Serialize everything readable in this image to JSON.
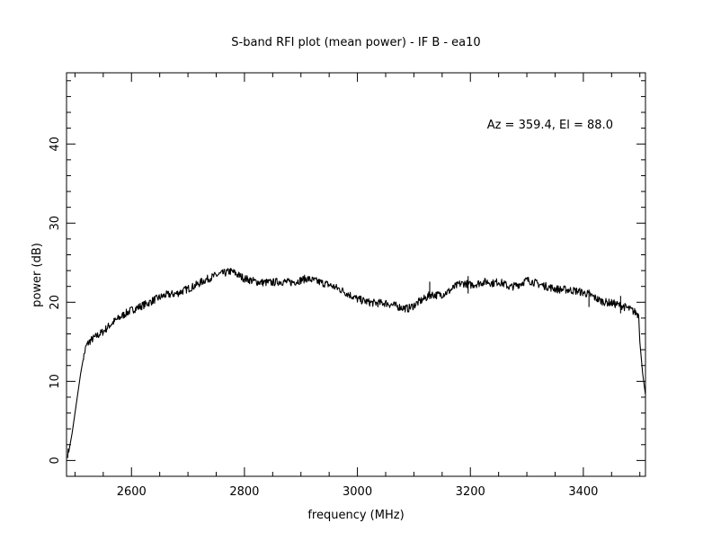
{
  "chart_data": {
    "type": "line",
    "title": "S-band RFI plot (mean power) - IF B - ea10",
    "xlabel": "frequency (MHz)",
    "ylabel": "power (dB)",
    "annotation": "Az = 359.4, El = 88.0",
    "xlim": [
      2485,
      3510
    ],
    "ylim": [
      -2,
      49
    ],
    "xticks": [
      2600,
      2800,
      3000,
      3200,
      3400
    ],
    "yticks": [
      0,
      10,
      20,
      30,
      40
    ],
    "xtick_labels": [
      "2600",
      "2800",
      "3000",
      "3200",
      "3400"
    ],
    "ytick_labels": [
      "0",
      "10",
      "20",
      "30",
      "40"
    ],
    "x_minor_step": 50,
    "y_minor_step": 2,
    "grid": false,
    "line_color": "#000000",
    "series": [
      {
        "x": [
          2487,
          2490,
          2495,
          2500,
          2505,
          2510,
          2515,
          2520,
          2525,
          2530,
          2540,
          2550,
          2560,
          2570,
          2580,
          2590,
          2600,
          2610,
          2620,
          2630,
          2640,
          2650,
          2660,
          2670,
          2680,
          2690,
          2700,
          2710,
          2720,
          2730,
          2740,
          2750,
          2760,
          2770,
          2775,
          2780,
          2790,
          2800,
          2810,
          2820,
          2830,
          2840,
          2850,
          2860,
          2870,
          2880,
          2890,
          2900,
          2910,
          2920,
          2930,
          2940,
          2950,
          2960,
          2970,
          2980,
          2990,
          3000,
          3010,
          3020,
          3030,
          3040,
          3050,
          3060,
          3070,
          3080,
          3090,
          3100,
          3110,
          3120,
          3130,
          3140,
          3150,
          3160,
          3170,
          3180,
          3190,
          3200,
          3210,
          3220,
          3230,
          3240,
          3250,
          3260,
          3270,
          3280,
          3290,
          3300,
          3310,
          3320,
          3330,
          3340,
          3350,
          3360,
          3370,
          3380,
          3390,
          3400,
          3410,
          3420,
          3430,
          3440,
          3450,
          3460,
          3470,
          3480,
          3490,
          3495,
          3498,
          3500,
          3505,
          3510
        ],
        "y": [
          0.8,
          1.5,
          3.5,
          6.0,
          8.5,
          11.0,
          13.0,
          14.5,
          15.0,
          15.3,
          15.8,
          16.3,
          17.0,
          17.6,
          18.1,
          18.6,
          19.0,
          19.3,
          19.6,
          19.9,
          20.3,
          20.6,
          20.9,
          21.0,
          21.1,
          21.4,
          21.7,
          22.0,
          22.4,
          22.8,
          23.1,
          23.4,
          23.6,
          23.8,
          23.9,
          23.8,
          23.4,
          23.0,
          22.8,
          22.6,
          22.5,
          22.5,
          22.5,
          22.6,
          22.6,
          22.5,
          22.6,
          22.8,
          23.0,
          22.8,
          22.6,
          22.4,
          22.2,
          21.9,
          21.6,
          21.2,
          20.8,
          20.4,
          20.2,
          20.0,
          19.9,
          19.9,
          19.9,
          19.7,
          19.5,
          19.3,
          19.2,
          19.6,
          20.1,
          20.5,
          21.0,
          20.9,
          21.0,
          21.3,
          21.8,
          22.3,
          22.4,
          22.2,
          22.3,
          22.5,
          22.6,
          22.4,
          22.6,
          22.3,
          21.9,
          22.1,
          22.4,
          22.8,
          22.6,
          22.3,
          22.1,
          21.9,
          21.7,
          21.6,
          21.6,
          21.5,
          21.4,
          21.2,
          21.0,
          20.6,
          20.2,
          20.0,
          19.9,
          19.7,
          19.5,
          19.2,
          18.8,
          18.6,
          18.3,
          15.0,
          11.0,
          8.3
        ]
      }
    ],
    "spikes": [
      {
        "x": 3128,
        "y": 22.6
      },
      {
        "x": 3196,
        "y": 23.3
      },
      {
        "x": 3410,
        "y": 21.6
      },
      {
        "x": 3466,
        "y": 20.8
      }
    ]
  }
}
